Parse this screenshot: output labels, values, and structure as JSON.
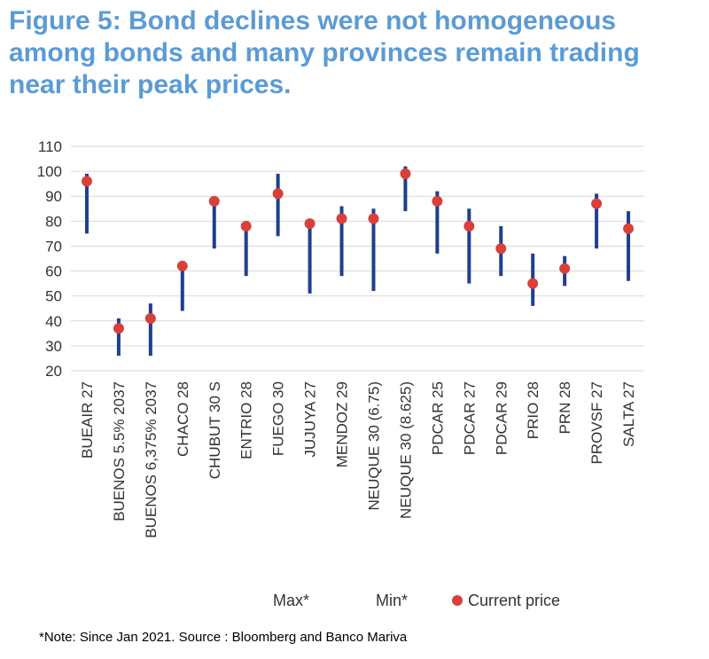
{
  "title_lines": [
    "Figure 5: Bond declines were not homogeneous",
    "among bonds and many provinces remain trading",
    "near their peak prices."
  ],
  "note": "*Note:  Since Jan 2021. Source : Bloomberg  and  Banco Mariva",
  "colors": {
    "title": "#5b9bd5",
    "range": "#1f3f8f",
    "current": "#d9403b",
    "grid": "#d9d9d9",
    "text": "#333333"
  },
  "chart_data": {
    "type": "high-low",
    "title": "Figure 5: Bond declines were not homogeneous among bonds and many provinces remain trading near their peak prices.",
    "categories": [
      "BUEAIR 27",
      "BUENOS 5.5% 2037",
      "BUENOS 6,375% 2037",
      "CHACO 28",
      "CHUBUT 30 S",
      "ENTRIO 28",
      "FUEGO 30",
      "JUJUYA 27",
      "MENDOZ 29",
      "NEUQUE 30 (6.75)",
      "NEUQUE 30 (8.625)",
      "PDCAR 25",
      "PDCAR 27",
      "PDCAR 29",
      "PRIO  28",
      "PRN 28",
      "PROVSF 27",
      "SALTA 27"
    ],
    "series": [
      {
        "name": "Max*",
        "values": [
          99,
          41,
          47,
          61,
          88,
          78,
          99,
          80,
          86,
          85,
          102,
          92,
          85,
          78,
          67,
          66,
          91,
          84
        ]
      },
      {
        "name": "Min*",
        "values": [
          75,
          26,
          26,
          44,
          69,
          58,
          74,
          51,
          58,
          52,
          84,
          67,
          55,
          58,
          46,
          54,
          69,
          56
        ]
      },
      {
        "name": "Current price",
        "values": [
          96,
          37,
          41,
          62,
          88,
          78,
          91,
          79,
          81,
          81,
          99,
          88,
          78,
          69,
          55,
          61,
          87,
          77
        ]
      }
    ],
    "ylim": [
      20,
      110
    ],
    "yticks": [
      20,
      30,
      40,
      50,
      60,
      70,
      80,
      90,
      100,
      110
    ],
    "grid": true,
    "legend": [
      "Max*",
      "Min*",
      "Current price"
    ],
    "legend_position": "bottom-right",
    "xlabel": "",
    "ylabel": ""
  }
}
